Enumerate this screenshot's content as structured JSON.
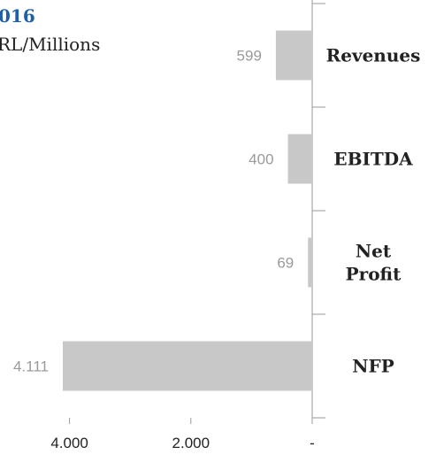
{
  "header": {
    "title_fragment": "016",
    "subtitle": "RL/Millions"
  },
  "chart_data": {
    "type": "bar",
    "orientation": "horizontal",
    "categories": [
      "Revenues",
      "EBITDA",
      "Net Profit",
      "NFP"
    ],
    "values": [
      599,
      400,
      69,
      4111
    ],
    "value_labels": [
      "599",
      "400",
      "69",
      "4.111"
    ],
    "x_reversed": true,
    "xlim": [
      0,
      4500
    ],
    "x_ticks": [
      4000,
      2000,
      0
    ],
    "x_tick_labels": [
      "4.000",
      "2.000",
      "-"
    ],
    "bar_color": "#c8c8c8",
    "grid": false
  },
  "colors": {
    "title": "#1f5fa8",
    "bar": "#c8c8c8",
    "axis": "#9a9a9a",
    "value_label": "#9a9a9a"
  }
}
